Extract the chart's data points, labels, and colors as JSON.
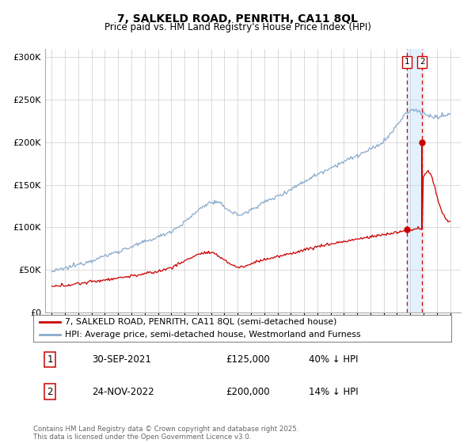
{
  "title": "7, SALKELD ROAD, PENRITH, CA11 8QL",
  "subtitle": "Price paid vs. HM Land Registry's House Price Index (HPI)",
  "legend_line1": "7, SALKELD ROAD, PENRITH, CA11 8QL (semi-detached house)",
  "legend_line2": "HPI: Average price, semi-detached house, Westmorland and Furness",
  "footer": "Contains HM Land Registry data © Crown copyright and database right 2025.\nThis data is licensed under the Open Government Licence v3.0.",
  "price_color": "#cc0000",
  "hpi_color": "#88aacc",
  "dashed_color": "#cc0000",
  "shade_color": "#ddeeff",
  "ylim": [
    0,
    310000
  ],
  "yticks": [
    0,
    50000,
    100000,
    150000,
    200000,
    250000,
    300000
  ],
  "ytick_labels": [
    "£0",
    "£50K",
    "£100K",
    "£150K",
    "£200K",
    "£250K",
    "£300K"
  ],
  "xlim_start": 1994.5,
  "xlim_end": 2025.8,
  "transactions": [
    {
      "label": "1",
      "date": "30-SEP-2021",
      "price": 125000,
      "note": "40% ↓ HPI",
      "x_year": 2021.75
    },
    {
      "label": "2",
      "date": "24-NOV-2022",
      "price": 200000,
      "note": "14% ↓ HPI",
      "x_year": 2022.9
    }
  ]
}
